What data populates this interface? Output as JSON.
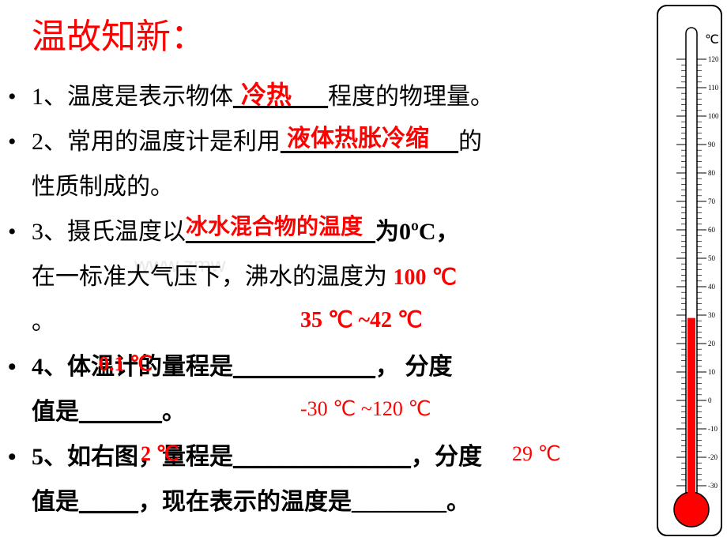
{
  "title": "温故知新：",
  "watermark": "www.zmw",
  "items": {
    "q1_pre": "1、温度是表示物体",
    "q1_ans": "冷热",
    "q1_blank": "________",
    "q1_post": "程度的物理量。",
    "q2_pre": "2、常用的温度计是利用",
    "q2_ans": "液体热胀冷缩",
    "q2_blank": "_______________",
    "q2_post": "的",
    "q2_line2": "性质制成的。",
    "q3_pre": "3、摄氏温度以",
    "q3_ans": "冰水混合物的温度",
    "q3_blank": "________________",
    "q3_post": "为0ºC，",
    "q3_line2": "在一标准大气压下，沸水的温度为",
    "q3_ans2": "100 ℃",
    "q3_line3": "。",
    "q4_ans_mid": "35 ℃ ~42 ℃",
    "q4_pre": "4、体温计的量程是",
    "q4_ans_over": "0.1 ℃",
    "q4_blank": "____________",
    "q4_post": "，   分度",
    "q4_line2_pre": "值是",
    "q4_line2_blank": "_______",
    "q4_line2_post": "。",
    "q4_ans2": "-30 ℃ ~120 ℃",
    "q5_pre": "5、如右图，量程是",
    "q5_ans_over": "2 ℃",
    "q5_blank": "_______________",
    "q5_post": "，分度",
    "q5_ans_right": "29 ℃",
    "q5_line2_pre": "值是",
    "q5_line2_blank": "_____",
    "q5_line2_post": "，现在表示的温度是________。"
  },
  "thermometer": {
    "unit": "℃",
    "min": -30,
    "max": 120,
    "step": 10,
    "current": 29,
    "body_color": "#ffffff",
    "border_color": "#000000",
    "fluid_color": "#ff0000",
    "tick_color": "#000000",
    "label_fontsize": 9
  },
  "colors": {
    "title": "#ff0000",
    "text": "#000000",
    "answer": "#ff0000",
    "bg": "#ffffff"
  }
}
